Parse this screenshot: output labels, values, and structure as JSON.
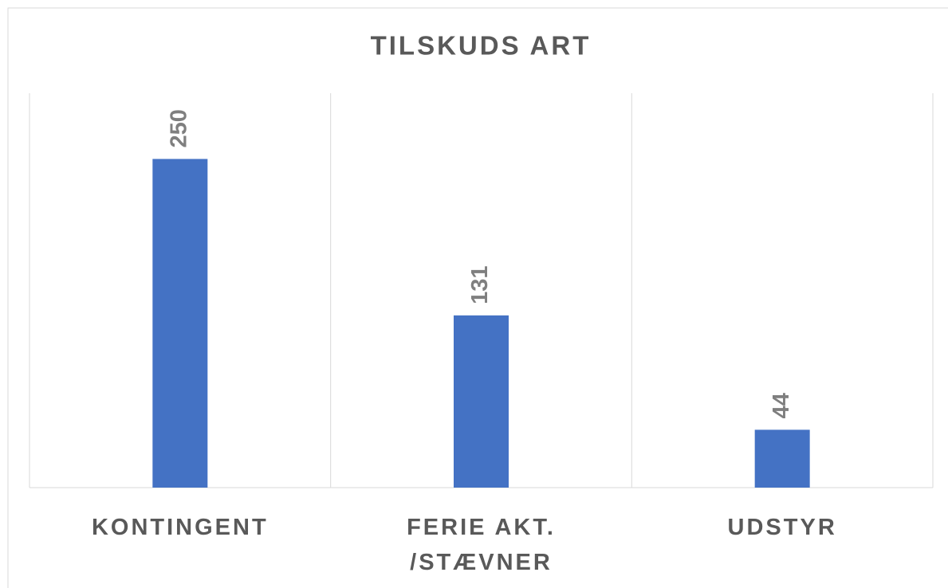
{
  "chart_data": {
    "type": "bar",
    "title": "TILSKUDS ART",
    "categories": [
      "KONTINGENT",
      "FERIE AKT. /STÆVNER",
      "UDSTYR"
    ],
    "values": [
      250,
      131,
      44
    ],
    "color": "#4472c4",
    "ylim": [
      0,
      300
    ],
    "grid": true
  }
}
